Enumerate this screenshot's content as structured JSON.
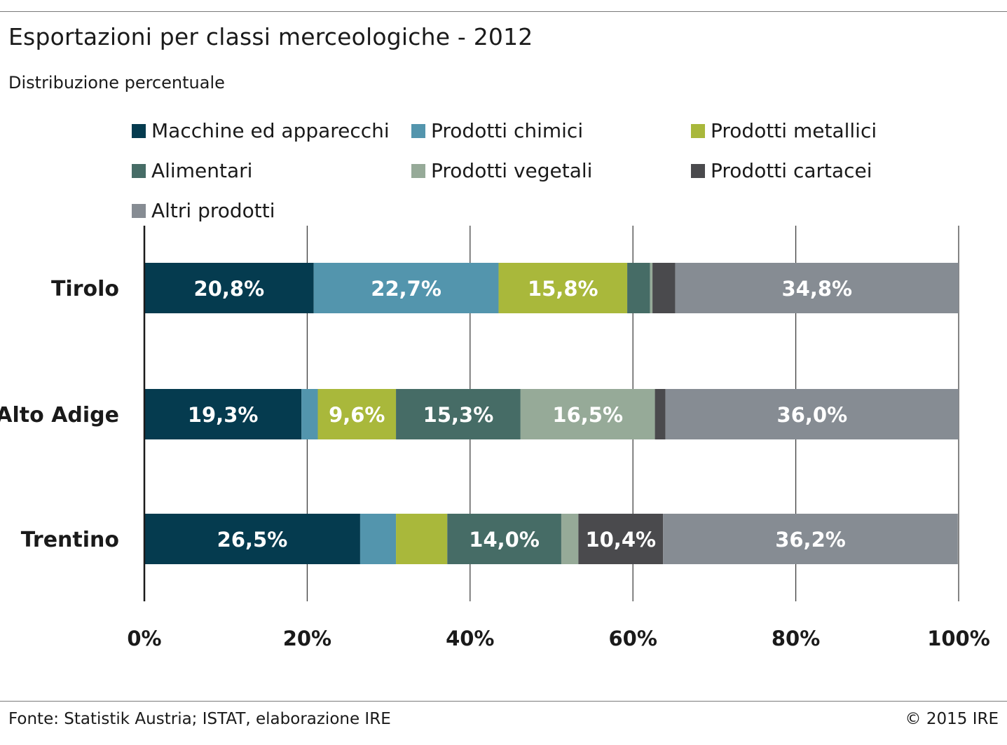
{
  "chart_data": {
    "type": "bar",
    "orientation": "horizontal",
    "stacked": true,
    "title": "Esportazioni per classi merceologiche - 2012",
    "subtitle": "Distribuzione percentuale",
    "categories": [
      "Tirolo",
      "Alto Adige",
      "Trentino"
    ],
    "series": [
      {
        "name": "Macchine ed apparecchi",
        "color": "#053b4f",
        "values": [
          20.8,
          19.3,
          26.5
        ],
        "labels": [
          "20,8%",
          "19,3%",
          "26,5%"
        ]
      },
      {
        "name": "Prodotti chimici",
        "color": "#5395ad",
        "values": [
          22.7,
          2.0,
          4.4
        ],
        "labels": [
          "22,7%",
          "",
          ""
        ]
      },
      {
        "name": "Prodotti metallici",
        "color": "#a9b83b",
        "values": [
          15.8,
          9.6,
          6.3
        ],
        "labels": [
          "15,8%",
          "9,6%",
          ""
        ]
      },
      {
        "name": "Alimentari",
        "color": "#466c66",
        "values": [
          2.8,
          15.3,
          14.0
        ],
        "labels": [
          "",
          "15,3%",
          "14,0%"
        ]
      },
      {
        "name": "Prodotti vegetali",
        "color": "#96aa98",
        "values": [
          0.3,
          16.5,
          2.1
        ],
        "labels": [
          "",
          "16,5%",
          ""
        ]
      },
      {
        "name": "Prodotti cartacei",
        "color": "#4a4a4d",
        "values": [
          2.8,
          1.3,
          10.4
        ],
        "labels": [
          "",
          "",
          "10,4%"
        ]
      },
      {
        "name": "Altri prodotti",
        "color": "#868c93",
        "values": [
          34.8,
          36.0,
          36.2
        ],
        "labels": [
          "34,8%",
          "36,0%",
          "36,2%"
        ]
      }
    ],
    "xlim": [
      0,
      100
    ],
    "xticks": [
      0,
      20,
      40,
      60,
      80,
      100
    ],
    "xtick_labels": [
      "0%",
      "20%",
      "40%",
      "60%",
      "80%",
      "100%"
    ],
    "grid": true,
    "legend_position": "top"
  },
  "footer": {
    "source": "Fonte: Statistik Austria; ISTAT, elaborazione IRE",
    "copyright": "© 2015 IRE"
  }
}
